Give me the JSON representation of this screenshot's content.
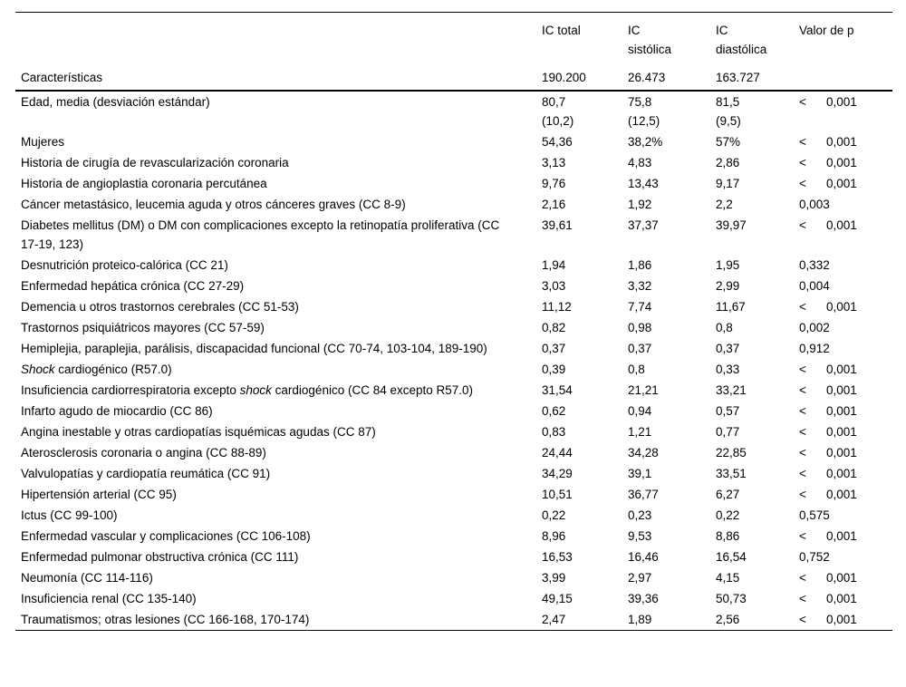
{
  "table": {
    "header": {
      "characteristics": "Características",
      "columns": [
        {
          "label": "IC total",
          "count": "190.200"
        },
        {
          "label": "IC\nsistólica",
          "count": "26.473"
        },
        {
          "label": "IC\ndiastólica",
          "count": "163.727"
        },
        {
          "label": "Valor de p",
          "count": ""
        }
      ]
    },
    "rows": [
      {
        "label_parts": [
          {
            "t": "Edad, media (desviación estándar)",
            "i": false
          }
        ],
        "total": "80,7\n(10,2)",
        "sistolica": "75,8\n(12,5)",
        "diastolica": "81,5\n(9,5)",
        "p_prefix": "<",
        "p": "0,001"
      },
      {
        "label_parts": [
          {
            "t": "Mujeres",
            "i": false
          }
        ],
        "total": "54,36",
        "sistolica": "38,2%",
        "diastolica": "57%",
        "p_prefix": "<",
        "p": "0,001"
      },
      {
        "label_parts": [
          {
            "t": "Historia de cirugía de revascularización coronaria",
            "i": false
          }
        ],
        "total": "3,13",
        "sistolica": "4,83",
        "diastolica": "2,86",
        "p_prefix": "<",
        "p": "0,001"
      },
      {
        "label_parts": [
          {
            "t": "Historia de angioplastia coronaria percutánea",
            "i": false
          }
        ],
        "total": "9,76",
        "sistolica": "13,43",
        "diastolica": "9,17",
        "p_prefix": "<",
        "p": "0,001"
      },
      {
        "label_parts": [
          {
            "t": "Cáncer metastásico, leucemia aguda y otros cánceres graves (CC 8-9)",
            "i": false
          }
        ],
        "total": "2,16",
        "sistolica": "1,92",
        "diastolica": "2,2",
        "p_prefix": "",
        "p": "0,003"
      },
      {
        "label_parts": [
          {
            "t": "Diabetes mellitus (DM) o DM con complicaciones excepto la retinopatía proliferativa (CC 17-19, 123)",
            "i": false
          }
        ],
        "total": "39,61",
        "sistolica": "37,37",
        "diastolica": "39,97",
        "p_prefix": "<",
        "p": "0,001"
      },
      {
        "label_parts": [
          {
            "t": "Desnutrición proteico-calórica (CC 21)",
            "i": false
          }
        ],
        "total": "1,94",
        "sistolica": "1,86",
        "diastolica": "1,95",
        "p_prefix": "",
        "p": "0,332"
      },
      {
        "label_parts": [
          {
            "t": "Enfermedad hepática crónica (CC 27-29)",
            "i": false
          }
        ],
        "total": "3,03",
        "sistolica": "3,32",
        "diastolica": "2,99",
        "p_prefix": "",
        "p": "0,004"
      },
      {
        "label_parts": [
          {
            "t": "Demencia u otros trastornos cerebrales (CC 51-53)",
            "i": false
          }
        ],
        "total": "11,12",
        "sistolica": "7,74",
        "diastolica": "11,67",
        "p_prefix": "<",
        "p": "0,001"
      },
      {
        "label_parts": [
          {
            "t": "Trastornos psiquiátricos mayores (CC 57-59)",
            "i": false
          }
        ],
        "total": "0,82",
        "sistolica": "0,98",
        "diastolica": "0,8",
        "p_prefix": "",
        "p": "0,002"
      },
      {
        "label_parts": [
          {
            "t": "Hemiplejia, paraplejia, parálisis, discapacidad funcional (CC 70-74, 103-104, 189-190)",
            "i": false
          }
        ],
        "total": "0,37",
        "sistolica": "0,37",
        "diastolica": "0,37",
        "p_prefix": "",
        "p": "0,912"
      },
      {
        "label_parts": [
          {
            "t": "Shock",
            "i": true
          },
          {
            "t": " cardiogénico (R57.0)",
            "i": false
          }
        ],
        "total": "0,39",
        "sistolica": "0,8",
        "diastolica": "0,33",
        "p_prefix": "<",
        "p": "0,001"
      },
      {
        "label_parts": [
          {
            "t": "Insuficiencia cardiorrespiratoria excepto ",
            "i": false
          },
          {
            "t": "shock",
            "i": true
          },
          {
            "t": " cardiogénico (CC 84 excepto R57.0)",
            "i": false
          }
        ],
        "total": "31,54",
        "sistolica": "21,21",
        "diastolica": "33,21",
        "p_prefix": "<",
        "p": "0,001"
      },
      {
        "label_parts": [
          {
            "t": "Infarto agudo de miocardio (CC 86)",
            "i": false
          }
        ],
        "total": "0,62",
        "sistolica": "0,94",
        "diastolica": "0,57",
        "p_prefix": "<",
        "p": "0,001"
      },
      {
        "label_parts": [
          {
            "t": "Angina inestable y otras cardiopatías isquémicas agudas (CC 87)",
            "i": false
          }
        ],
        "total": "0,83",
        "sistolica": "1,21",
        "diastolica": "0,77",
        "p_prefix": "<",
        "p": "0,001"
      },
      {
        "label_parts": [
          {
            "t": "Aterosclerosis coronaria o angina (CC 88-89)",
            "i": false
          }
        ],
        "total": "24,44",
        "sistolica": "34,28",
        "diastolica": "22,85",
        "p_prefix": "<",
        "p": "0,001"
      },
      {
        "label_parts": [
          {
            "t": "Valvulopatías y cardiopatía reumática (CC 91)",
            "i": false
          }
        ],
        "total": "34,29",
        "sistolica": "39,1",
        "diastolica": "33,51",
        "p_prefix": "<",
        "p": "0,001"
      },
      {
        "label_parts": [
          {
            "t": "Hipertensión arterial (CC 95)",
            "i": false
          }
        ],
        "total": "10,51",
        "sistolica": "36,77",
        "diastolica": "6,27",
        "p_prefix": "<",
        "p": "0,001"
      },
      {
        "label_parts": [
          {
            "t": "Ictus (CC 99-100)",
            "i": false
          }
        ],
        "total": "0,22",
        "sistolica": "0,23",
        "diastolica": "0,22",
        "p_prefix": "",
        "p": "0,575"
      },
      {
        "label_parts": [
          {
            "t": "Enfermedad vascular y complicaciones (CC 106-108)",
            "i": false
          }
        ],
        "total": "8,96",
        "sistolica": "9,53",
        "diastolica": "8,86",
        "p_prefix": "<",
        "p": "0,001"
      },
      {
        "label_parts": [
          {
            "t": "Enfermedad pulmonar obstructiva crónica (CC 111)",
            "i": false
          }
        ],
        "total": "16,53",
        "sistolica": "16,46",
        "diastolica": "16,54",
        "p_prefix": "",
        "p": "0,752"
      },
      {
        "label_parts": [
          {
            "t": "Neumonía (CC 114-116)",
            "i": false
          }
        ],
        "total": "3,99",
        "sistolica": "2,97",
        "diastolica": "4,15",
        "p_prefix": "<",
        "p": "0,001"
      },
      {
        "label_parts": [
          {
            "t": "Insuficiencia renal (CC 135-140)",
            "i": false
          }
        ],
        "total": "49,15",
        "sistolica": "39,36",
        "diastolica": "50,73",
        "p_prefix": "<",
        "p": "0,001"
      },
      {
        "label_parts": [
          {
            "t": "Traumatismos; otras lesiones (CC 166-168, 170-174)",
            "i": false
          }
        ],
        "total": "2,47",
        "sistolica": "1,89",
        "diastolica": "2,56",
        "p_prefix": "<",
        "p": "0,001"
      }
    ]
  }
}
